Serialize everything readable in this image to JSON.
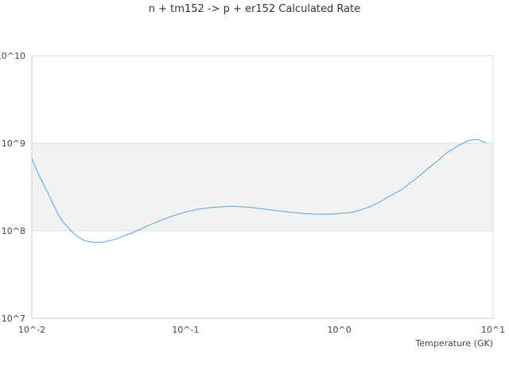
{
  "chart_data": {
    "type": "line",
    "title": "n + tm152 -> p + er152 Calculated Rate",
    "xlabel": "Temperature (GK)",
    "ylabel": "",
    "x_scale": "log",
    "y_scale": "log",
    "xlim": [
      0.01,
      10
    ],
    "ylim": [
      10000000,
      10000000000
    ],
    "x_ticks": [
      "10^-2",
      "10^-1",
      "10^0",
      "10^1"
    ],
    "y_ticks": [
      "10^7",
      "10^8",
      "10^9",
      "10^10"
    ],
    "shaded_band": [
      100000000,
      1000000000
    ],
    "grid": "horizontal",
    "legend": "none",
    "colors": {
      "line": "#5aa0e6",
      "band": "#f2f2f2",
      "grid": "#dddddd",
      "axis": "#cccccc"
    },
    "series": [
      {
        "x": [
          0.01,
          0.011,
          0.012,
          0.013,
          0.014,
          0.015,
          0.016,
          0.018,
          0.02,
          0.022,
          0.025,
          0.028,
          0.03,
          0.035,
          0.04,
          0.045,
          0.05,
          0.06,
          0.07,
          0.08,
          0.09,
          0.1,
          0.12,
          0.14,
          0.16,
          0.18,
          0.2,
          0.22,
          0.25,
          0.3,
          0.35,
          0.4,
          0.5,
          0.6,
          0.7,
          0.8,
          0.9,
          1.0,
          1.2,
          1.4,
          1.6,
          1.8,
          2.0,
          2.5,
          3.0,
          3.5,
          4.0,
          4.5,
          5.0,
          6.0,
          7.0,
          8.0,
          9.0
        ],
        "y": [
          670000000,
          450000000,
          330000000,
          250000000,
          190000000,
          150000000,
          125000000,
          100000000,
          85000000,
          77000000,
          74000000,
          74000000,
          75000000,
          80000000,
          88000000,
          95000000,
          103000000,
          119000000,
          133000000,
          145000000,
          155000000,
          164000000,
          176000000,
          183000000,
          187000000,
          188000000,
          191000000,
          188000000,
          187000000,
          180000000,
          174000000,
          169000000,
          162000000,
          157000000,
          155000000,
          155000000,
          155000000,
          158000000,
          162000000,
          175000000,
          190000000,
          210000000,
          235000000,
          290000000,
          370000000,
          460000000,
          560000000,
          660000000,
          780000000,
          950000000,
          1080000000,
          1100000000,
          1010000000
        ]
      }
    ]
  }
}
